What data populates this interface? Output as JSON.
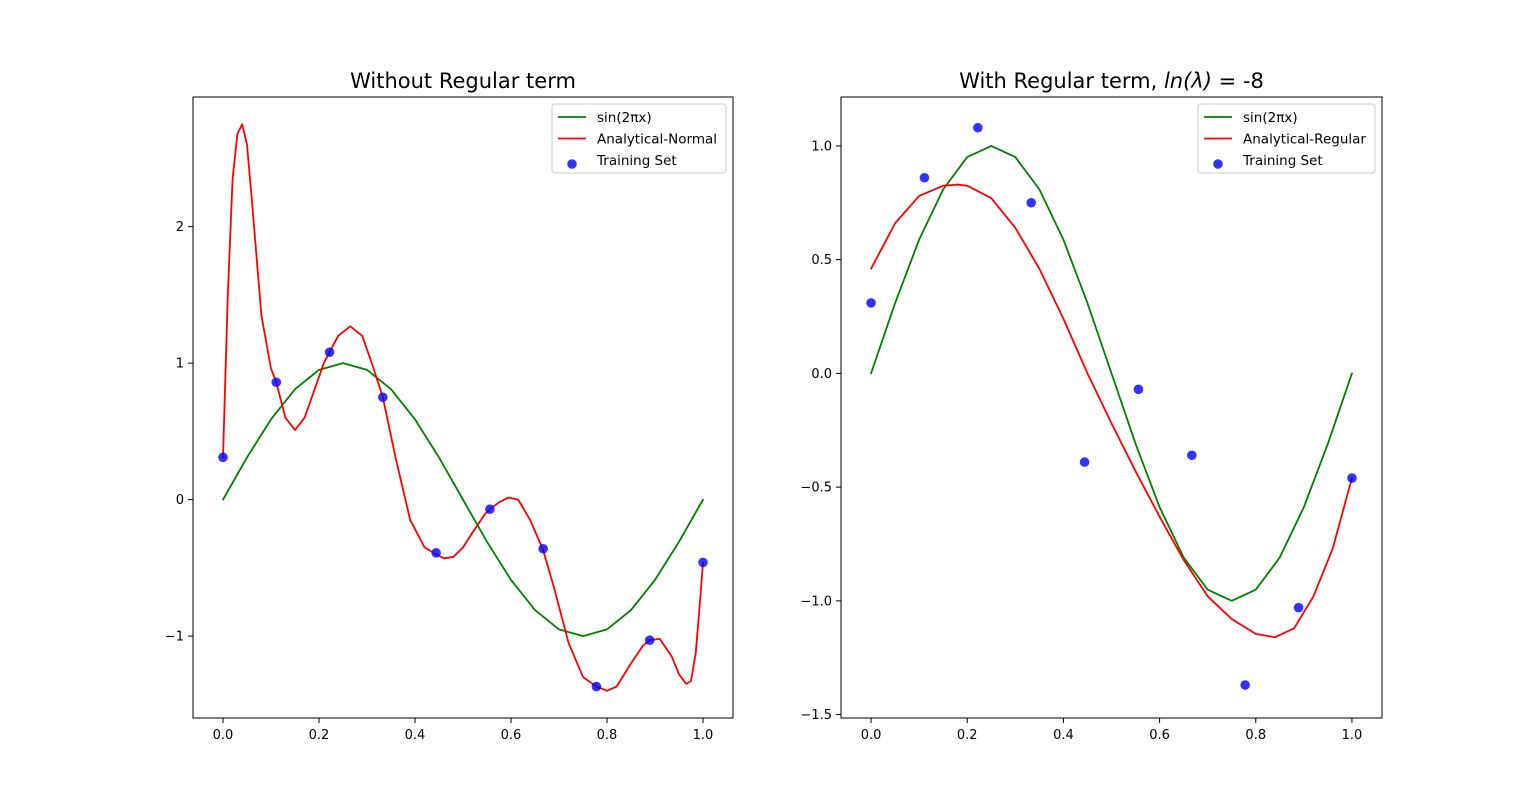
{
  "chart_data": [
    {
      "type": "line",
      "title": "Without Regular term",
      "xlabel": "",
      "ylabel": "",
      "xlim": [
        -0.0625,
        1.0625
      ],
      "ylim": [
        -1.6,
        2.95
      ],
      "x_ticks": [
        0.0,
        0.2,
        0.4,
        0.6,
        0.8,
        1.0
      ],
      "x_tick_labels": [
        "0.0",
        "0.2",
        "0.4",
        "0.6",
        "0.8",
        "1.0"
      ],
      "y_ticks": [
        -1,
        0,
        1,
        2
      ],
      "y_tick_labels": [
        "−1",
        "0",
        "1",
        "2"
      ],
      "grid": false,
      "legend_position": "top-right",
      "series": [
        {
          "name": "sin(2πx)",
          "kind": "line",
          "color": "#008000",
          "x": [
            0.0,
            0.05,
            0.1,
            0.15,
            0.2,
            0.25,
            0.3,
            0.35,
            0.4,
            0.45,
            0.5,
            0.55,
            0.6,
            0.65,
            0.7,
            0.75,
            0.8,
            0.85,
            0.9,
            0.95,
            1.0
          ],
          "y": [
            0.0,
            0.309,
            0.588,
            0.809,
            0.951,
            1.0,
            0.951,
            0.809,
            0.588,
            0.309,
            0.0,
            -0.309,
            -0.588,
            -0.809,
            -0.951,
            -1.0,
            -0.951,
            -0.809,
            -0.588,
            -0.309,
            0.0
          ]
        },
        {
          "name": "Analytical-Normal",
          "kind": "line",
          "color": "#ff0000",
          "x": [
            0.0,
            0.01,
            0.02,
            0.03,
            0.04,
            0.05,
            0.06,
            0.08,
            0.1,
            0.111,
            0.13,
            0.15,
            0.17,
            0.19,
            0.21,
            0.222,
            0.24,
            0.265,
            0.29,
            0.31,
            0.333,
            0.36,
            0.39,
            0.42,
            0.444,
            0.46,
            0.48,
            0.5,
            0.52,
            0.545,
            0.556,
            0.575,
            0.595,
            0.615,
            0.64,
            0.667,
            0.69,
            0.72,
            0.75,
            0.778,
            0.8,
            0.82,
            0.85,
            0.875,
            0.889,
            0.91,
            0.935,
            0.95,
            0.965,
            0.975,
            0.985,
            0.993,
            1.0
          ],
          "y": [
            0.31,
            1.5,
            2.35,
            2.68,
            2.75,
            2.6,
            2.2,
            1.35,
            0.96,
            0.86,
            0.6,
            0.51,
            0.6,
            0.8,
            1.0,
            1.08,
            1.2,
            1.27,
            1.2,
            1.0,
            0.75,
            0.3,
            -0.15,
            -0.35,
            -0.4,
            -0.43,
            -0.42,
            -0.35,
            -0.24,
            -0.11,
            -0.07,
            -0.02,
            0.015,
            0.0,
            -0.15,
            -0.37,
            -0.65,
            -1.05,
            -1.3,
            -1.37,
            -1.4,
            -1.37,
            -1.2,
            -1.07,
            -1.03,
            -1.02,
            -1.15,
            -1.28,
            -1.35,
            -1.33,
            -1.12,
            -0.78,
            -0.46
          ]
        },
        {
          "name": "Training Set",
          "kind": "scatter",
          "color": "#0000ff",
          "x": [
            0.0,
            0.111,
            0.222,
            0.333,
            0.444,
            0.556,
            0.667,
            0.778,
            0.889,
            1.0
          ],
          "y": [
            0.31,
            0.86,
            1.08,
            0.75,
            -0.39,
            -0.07,
            -0.36,
            -1.37,
            -1.03,
            -0.46
          ]
        }
      ]
    },
    {
      "type": "line",
      "title": "With Regular term, ",
      "title_math": "ln(λ)",
      "title_suffix": " = -8",
      "xlabel": "",
      "ylabel": "",
      "xlim": [
        -0.0625,
        1.0625
      ],
      "ylim": [
        -1.515,
        1.215
      ],
      "x_ticks": [
        0.0,
        0.2,
        0.4,
        0.6,
        0.8,
        1.0
      ],
      "x_tick_labels": [
        "0.0",
        "0.2",
        "0.4",
        "0.6",
        "0.8",
        "1.0"
      ],
      "y_ticks": [
        -1.5,
        -1.0,
        -0.5,
        0.0,
        0.5,
        1.0
      ],
      "y_tick_labels": [
        "−1.5",
        "−1.0",
        "−0.5",
        "0.0",
        "0.5",
        "1.0"
      ],
      "grid": false,
      "legend_position": "top-right",
      "series": [
        {
          "name": "sin(2πx)",
          "kind": "line",
          "color": "#008000",
          "x": [
            0.0,
            0.05,
            0.1,
            0.15,
            0.2,
            0.25,
            0.3,
            0.35,
            0.4,
            0.45,
            0.5,
            0.55,
            0.6,
            0.65,
            0.7,
            0.75,
            0.8,
            0.85,
            0.9,
            0.95,
            1.0
          ],
          "y": [
            0.0,
            0.309,
            0.588,
            0.809,
            0.951,
            1.0,
            0.951,
            0.809,
            0.588,
            0.309,
            0.0,
            -0.309,
            -0.588,
            -0.809,
            -0.951,
            -1.0,
            -0.951,
            -0.809,
            -0.588,
            -0.309,
            0.0
          ]
        },
        {
          "name": "Analytical-Regular",
          "kind": "line",
          "color": "#ff0000",
          "x": [
            0.0,
            0.05,
            0.1,
            0.15,
            0.18,
            0.2,
            0.25,
            0.3,
            0.35,
            0.4,
            0.45,
            0.5,
            0.55,
            0.6,
            0.65,
            0.7,
            0.75,
            0.8,
            0.84,
            0.88,
            0.92,
            0.96,
            1.0
          ],
          "y": [
            0.46,
            0.66,
            0.78,
            0.825,
            0.83,
            0.825,
            0.77,
            0.64,
            0.46,
            0.24,
            0.0,
            -0.22,
            -0.43,
            -0.63,
            -0.82,
            -0.98,
            -1.08,
            -1.145,
            -1.16,
            -1.12,
            -0.98,
            -0.77,
            -0.46
          ]
        },
        {
          "name": "Training Set",
          "kind": "scatter",
          "color": "#0000ff",
          "x": [
            0.0,
            0.111,
            0.222,
            0.333,
            0.444,
            0.556,
            0.667,
            0.778,
            0.889,
            1.0
          ],
          "y": [
            0.31,
            0.86,
            1.08,
            0.75,
            -0.39,
            -0.07,
            -0.36,
            -1.37,
            -1.03,
            -0.46
          ]
        }
      ]
    }
  ]
}
